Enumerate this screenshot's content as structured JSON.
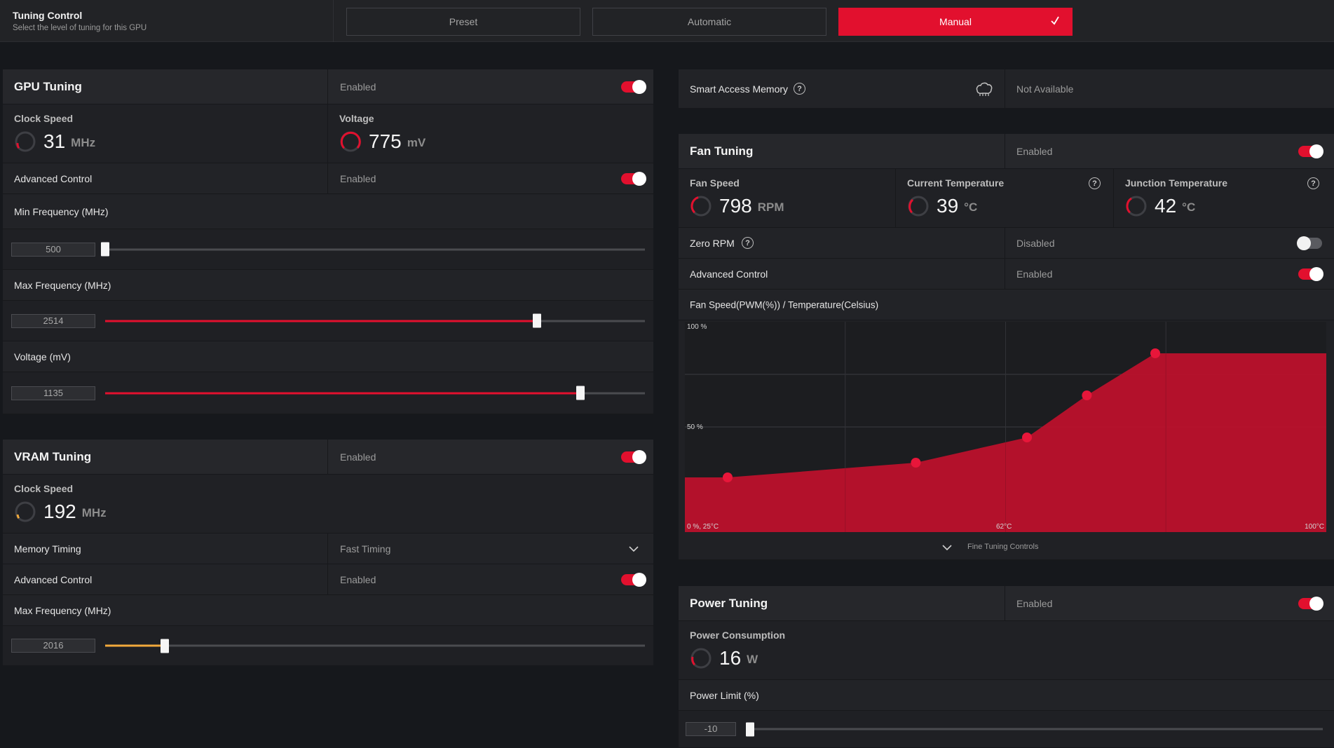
{
  "tuning_control": {
    "title": "Tuning Control",
    "subtitle": "Select the level of tuning for this GPU",
    "modes": [
      "Preset",
      "Automatic",
      "Manual"
    ],
    "active_mode": "Manual"
  },
  "gpu_tuning": {
    "title": "GPU Tuning",
    "state": "Enabled",
    "enabled": true,
    "clock_speed": {
      "label": "Clock Speed",
      "value": "31",
      "unit": "MHz"
    },
    "voltage": {
      "label": "Voltage",
      "value": "775",
      "unit": "mV"
    },
    "advanced_control": {
      "label": "Advanced Control",
      "state": "Enabled",
      "enabled": true
    },
    "min_frequency": {
      "label": "Min Frequency (MHz)",
      "value": "500",
      "fraction": 0.0
    },
    "max_frequency": {
      "label": "Max Frequency (MHz)",
      "value": "2514",
      "fraction": 0.8
    },
    "voltage_slider": {
      "label": "Voltage (mV)",
      "value": "1135",
      "fraction": 0.88
    }
  },
  "vram_tuning": {
    "title": "VRAM Tuning",
    "state": "Enabled",
    "enabled": true,
    "clock_speed": {
      "label": "Clock Speed",
      "value": "192",
      "unit": "MHz"
    },
    "memory_timing": {
      "label": "Memory Timing",
      "value": "Fast Timing"
    },
    "advanced_control": {
      "label": "Advanced Control",
      "state": "Enabled",
      "enabled": true
    },
    "max_frequency": {
      "label": "Max Frequency (MHz)",
      "value": "2016",
      "fraction": 0.11
    }
  },
  "smart_access_memory": {
    "label": "Smart Access Memory",
    "state": "Not Available"
  },
  "fan_tuning": {
    "title": "Fan Tuning",
    "state": "Enabled",
    "enabled": true,
    "fan_speed": {
      "label": "Fan Speed",
      "value": "798",
      "unit": "RPM"
    },
    "current_temperature": {
      "label": "Current Temperature",
      "value": "39",
      "unit": "°C"
    },
    "junction_temperature": {
      "label": "Junction Temperature",
      "value": "42",
      "unit": "°C"
    },
    "zero_rpm": {
      "label": "Zero RPM",
      "state": "Disabled",
      "enabled": false
    },
    "advanced_control": {
      "label": "Advanced Control",
      "state": "Enabled",
      "enabled": true
    },
    "curve_title": "Fan Speed(PWM(%)) / Temperature(Celsius)",
    "fine_tuning": "Fine Tuning Controls"
  },
  "chart_data": {
    "type": "area",
    "title": "Fan Speed(PWM(%)) / Temperature(Celsius)",
    "axis_labels": {
      "y_top": "100 %",
      "y_mid": "50 %",
      "origin": "0 %, 25°C",
      "x_mid": "62°C",
      "x_max": "100°C"
    },
    "x_range": [
      25,
      100
    ],
    "y_range": [
      0,
      100
    ],
    "x": [
      30,
      52,
      65,
      72,
      80
    ],
    "y": [
      26,
      33,
      45,
      65,
      85
    ],
    "grid": true,
    "fill_color": "#c0102c",
    "point_color": "#e8163a"
  },
  "power_tuning": {
    "title": "Power Tuning",
    "state": "Enabled",
    "enabled": true,
    "power_consumption": {
      "label": "Power Consumption",
      "value": "16",
      "unit": "W"
    },
    "power_limit": {
      "label": "Power Limit (%)",
      "value": "-10",
      "fraction": 0.0
    }
  },
  "colors": {
    "accent": "#e2102e",
    "vram_accent": "#f2a93b",
    "background": "#16181c"
  }
}
